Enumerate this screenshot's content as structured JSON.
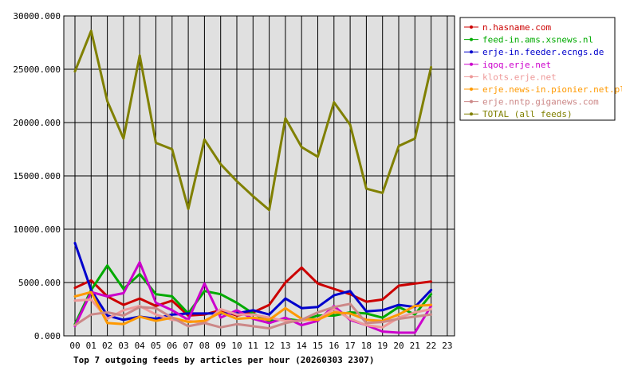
{
  "chart_data": {
    "type": "line",
    "title": "Top 7 outgoing feeds by articles per hour (20260303 2307)",
    "xlabel": "",
    "ylabel": "",
    "categories": [
      "00",
      "01",
      "02",
      "03",
      "04",
      "05",
      "06",
      "07",
      "08",
      "09",
      "10",
      "11",
      "12",
      "13",
      "14",
      "15",
      "16",
      "17",
      "18",
      "19",
      "20",
      "21",
      "22",
      "23"
    ],
    "ylim": [
      0,
      30000
    ],
    "yticks": [
      "0.000",
      "5000.000",
      "10000.000",
      "15000.000",
      "20000.000",
      "25000.000",
      "30000.000"
    ],
    "ytick_values": [
      0,
      5000,
      10000,
      15000,
      20000,
      25000,
      30000
    ],
    "grid": true,
    "legend_position": "top-right",
    "series": [
      {
        "name": "n.hasname.com",
        "color": "#cc0000",
        "values": [
          4500,
          5200,
          3700,
          2900,
          3500,
          2800,
          3300,
          1900,
          2000,
          2400,
          1900,
          2200,
          2900,
          5000,
          6400,
          4900,
          4400,
          3900,
          3200,
          3400,
          4700,
          4900,
          5100,
          null
        ]
      },
      {
        "name": "feed-in.ams.xsnews.nl",
        "color": "#00aa00",
        "values": [
          1100,
          4300,
          6600,
          4400,
          5800,
          3900,
          3700,
          2100,
          4200,
          3900,
          3100,
          2100,
          1400,
          1600,
          1400,
          1900,
          1900,
          2200,
          2100,
          1700,
          2700,
          2000,
          3900,
          null
        ]
      },
      {
        "name": "erje-in.feeder.ecngs.de",
        "color": "#0000cc",
        "values": [
          8700,
          4300,
          1900,
          1500,
          1800,
          1600,
          2000,
          2100,
          2100,
          2100,
          2100,
          2400,
          2000,
          3500,
          2600,
          2700,
          3800,
          4200,
          2300,
          2400,
          2900,
          2700,
          4300,
          null
        ]
      },
      {
        "name": "iqoq.erje.net",
        "color": "#cc00cc",
        "values": [
          900,
          4100,
          3700,
          4000,
          6900,
          3100,
          2400,
          1500,
          4900,
          1700,
          2400,
          1600,
          1200,
          1700,
          1000,
          1400,
          2800,
          1500,
          1000,
          400,
          300,
          300,
          2800,
          null
        ]
      },
      {
        "name": "klots.erje.net",
        "color": "#ee9999",
        "values": [
          3300,
          3400,
          1600,
          2400,
          2800,
          2000,
          1500,
          1400,
          1200,
          2500,
          2000,
          2000,
          1700,
          1400,
          1400,
          1600,
          2500,
          1600,
          1000,
          800,
          1700,
          2200,
          2500,
          null
        ]
      },
      {
        "name": "erje.news-in.pionier.net.pl",
        "color": "#ff9900",
        "values": [
          3700,
          4100,
          1200,
          1100,
          1800,
          1400,
          1700,
          1300,
          1400,
          2200,
          1600,
          1700,
          1500,
          2600,
          1600,
          1500,
          2200,
          2100,
          1500,
          1400,
          2000,
          2800,
          2900,
          null
        ]
      },
      {
        "name": "erje.nntp.giganews.com",
        "color": "#cc8888",
        "values": [
          1000,
          2000,
          2200,
          1900,
          2700,
          2600,
          1700,
          900,
          1200,
          800,
          1100,
          900,
          700,
          1200,
          1500,
          2200,
          2700,
          3000,
          1200,
          1300,
          1600,
          1800,
          2000,
          null
        ]
      },
      {
        "name": "TOTAL (all feeds)",
        "color": "#808000",
        "values": [
          24800,
          28600,
          22000,
          18500,
          26300,
          18100,
          17500,
          11900,
          18400,
          16100,
          14500,
          13100,
          11800,
          20400,
          17700,
          16800,
          21900,
          19800,
          13800,
          13400,
          17800,
          18500,
          25200,
          null
        ]
      }
    ]
  }
}
